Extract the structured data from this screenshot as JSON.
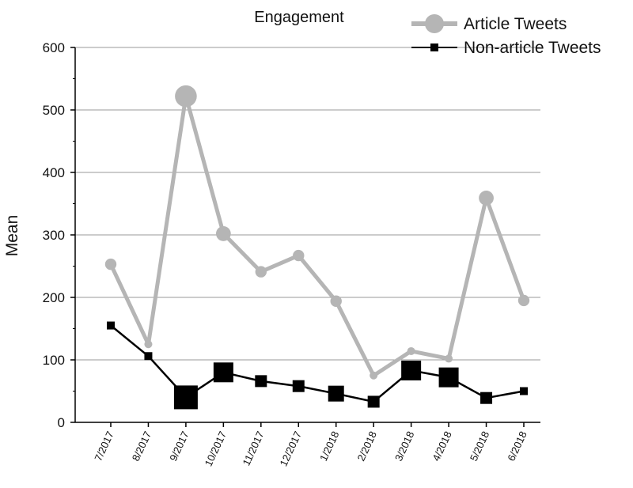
{
  "chart_data": {
    "type": "line",
    "title": "Engagement",
    "xlabel": "",
    "ylabel": "Mean",
    "ylim": [
      0,
      600
    ],
    "yticks": [
      0,
      100,
      200,
      300,
      400,
      500,
      600
    ],
    "grid": "horizontal",
    "legend_position": "top-right",
    "categories": [
      "7/2017",
      "8/2017",
      "9/2017",
      "10/2017",
      "11/2017",
      "12/2017",
      "1/2018",
      "2/2018",
      "3/2018",
      "4/2018",
      "5/2018",
      "6/2018"
    ],
    "series": [
      {
        "name": "Article Tweets",
        "color": "#b5b5b5",
        "marker": "circle",
        "values": [
          253,
          125,
          522,
          302,
          241,
          267,
          194,
          75,
          114,
          102,
          359,
          195
        ],
        "marker_weight": [
          2,
          1,
          5,
          3,
          2,
          2,
          2,
          1,
          1,
          1,
          3,
          2
        ]
      },
      {
        "name": "Non-article Tweets",
        "color": "#000000",
        "marker": "square",
        "values": [
          155,
          106,
          40,
          80,
          66,
          58,
          46,
          33,
          83,
          72,
          39,
          50
        ],
        "marker_weight": [
          1,
          1,
          5,
          4,
          2,
          2,
          3,
          2,
          4,
          4,
          2,
          1
        ]
      }
    ]
  }
}
